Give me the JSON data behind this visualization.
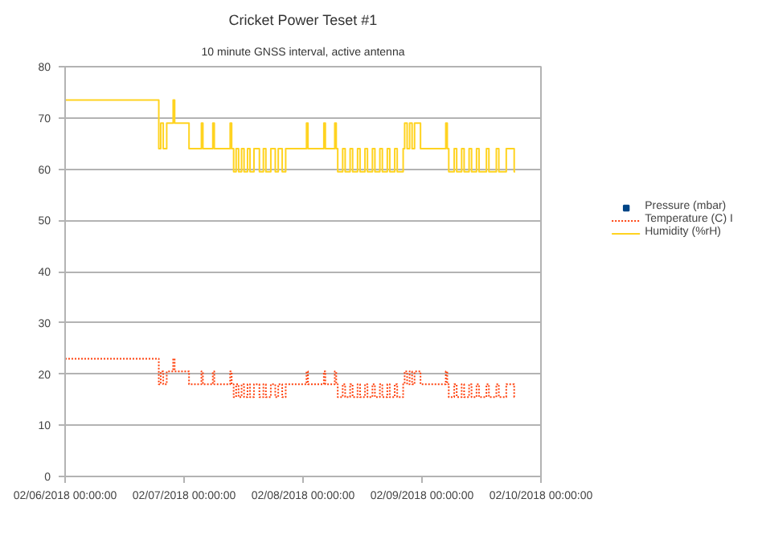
{
  "chart_data": {
    "type": "step",
    "title": "Cricket Power Teset #1",
    "subtitle": "10 minute GNSS interval, active antenna",
    "x": [
      "2018-02-06T00:00",
      "2018-02-06T18:54",
      "2018-02-06T19:18",
      "2018-02-06T19:48",
      "2018-02-06T20:30",
      "2018-02-06T21:48",
      "2018-02-06T22:06",
      "2018-02-07T01:00",
      "2018-02-07T03:30",
      "2018-02-07T03:48",
      "2018-02-07T05:48",
      "2018-02-07T06:06",
      "2018-02-07T09:18",
      "2018-02-07T09:36",
      "2018-02-07T10:00",
      "2018-02-07T10:30",
      "2018-02-07T11:00",
      "2018-02-07T11:36",
      "2018-02-07T12:06",
      "2018-02-07T12:48",
      "2018-02-07T13:18",
      "2018-02-07T14:06",
      "2018-02-07T15:12",
      "2018-02-07T16:00",
      "2018-02-07T16:30",
      "2018-02-07T17:30",
      "2018-02-07T18:24",
      "2018-02-07T19:00",
      "2018-02-07T19:48",
      "2018-02-07T20:30",
      "2018-02-08T00:42",
      "2018-02-08T01:00",
      "2018-02-08T04:12",
      "2018-02-08T04:30",
      "2018-02-08T06:24",
      "2018-02-08T06:42",
      "2018-02-08T07:00",
      "2018-02-08T08:00",
      "2018-02-08T08:30",
      "2018-02-08T09:30",
      "2018-02-08T10:00",
      "2018-02-08T11:00",
      "2018-02-08T11:30",
      "2018-02-08T12:30",
      "2018-02-08T13:00",
      "2018-02-08T14:00",
      "2018-02-08T14:30",
      "2018-02-08T15:30",
      "2018-02-08T16:00",
      "2018-02-08T17:00",
      "2018-02-08T17:30",
      "2018-02-08T18:30",
      "2018-02-08T19:00",
      "2018-02-08T20:12",
      "2018-02-08T20:30",
      "2018-02-08T21:00",
      "2018-02-08T21:30",
      "2018-02-08T22:00",
      "2018-02-08T22:30",
      "2018-02-08T23:42",
      "2018-02-09T04:48",
      "2018-02-09T05:06",
      "2018-02-09T05:24",
      "2018-02-09T06:30",
      "2018-02-09T07:00",
      "2018-02-09T08:00",
      "2018-02-09T08:30",
      "2018-02-09T09:30",
      "2018-02-09T10:00",
      "2018-02-09T11:00",
      "2018-02-09T11:30",
      "2018-02-09T13:00",
      "2018-02-09T13:30",
      "2018-02-09T15:00",
      "2018-02-09T15:30",
      "2018-02-09T17:00",
      "2018-02-09T18:36",
      "2018-02-09T18:48"
    ],
    "series": [
      {
        "name": "Pressure (mbar)",
        "type": "scatter",
        "marker": "square",
        "color": "#004586",
        "values": [
          null,
          null,
          null,
          null,
          null,
          null,
          null,
          null,
          null,
          null,
          null,
          null,
          null,
          null,
          null,
          null,
          null,
          null,
          null,
          null,
          null,
          null,
          null,
          null,
          null,
          null,
          null,
          null,
          null,
          null,
          null,
          null,
          null,
          null,
          null,
          null,
          null,
          null,
          null,
          null,
          null,
          null,
          null,
          null,
          null,
          null,
          null,
          null,
          null,
          null,
          null,
          null,
          null,
          null,
          null,
          null,
          null,
          null,
          null,
          null,
          null,
          null,
          null,
          null,
          null,
          null,
          null,
          null,
          null,
          null,
          null,
          null,
          null,
          null,
          null,
          null,
          null,
          null
        ]
      },
      {
        "name": "Temperature (C) I",
        "color": "#ff420e",
        "line_style": "dotted",
        "values": [
          23,
          18,
          20.5,
          18,
          20.5,
          23,
          20.5,
          18,
          20.5,
          18,
          20.5,
          18,
          20.5,
          18,
          15.5,
          18,
          15.5,
          18,
          15.5,
          18,
          15.5,
          18,
          15.5,
          18,
          15.5,
          18,
          15.5,
          18,
          15.5,
          18,
          20.5,
          18,
          20.5,
          18,
          20.5,
          18,
          15.5,
          18,
          15.5,
          18,
          15.5,
          18,
          15.5,
          18,
          15.5,
          18,
          15.5,
          18,
          15.5,
          18,
          15.5,
          18,
          15.5,
          18,
          20.5,
          18,
          20.5,
          18,
          20.5,
          18,
          20.5,
          18,
          15.5,
          18,
          15.5,
          18,
          15.5,
          18,
          15.5,
          18,
          15.5,
          18,
          15.5,
          18,
          15.5,
          18,
          15.5,
          15.5
        ]
      },
      {
        "name": "Humidity (%rH)",
        "color": "#ffd320",
        "line_style": "solid",
        "values": [
          73.5,
          64,
          69,
          64,
          69,
          73.5,
          69,
          64,
          69,
          64,
          69,
          64,
          69,
          64,
          59.5,
          64,
          59.5,
          64,
          59.5,
          64,
          59.5,
          64,
          59.5,
          64,
          59.5,
          64,
          59.5,
          64,
          59.5,
          64,
          69,
          64,
          69,
          64,
          69,
          64,
          59.5,
          64,
          59.5,
          64,
          59.5,
          64,
          59.5,
          64,
          59.5,
          64,
          59.5,
          64,
          59.5,
          64,
          59.5,
          64,
          59.5,
          64,
          69,
          64,
          69,
          64,
          69,
          64,
          69,
          64,
          59.5,
          64,
          59.5,
          64,
          59.5,
          64,
          59.5,
          64,
          59.5,
          64,
          59.5,
          64,
          59.5,
          64,
          59.5,
          59.5
        ]
      }
    ],
    "ylim": [
      0,
      80
    ],
    "yticks": [
      0,
      10,
      20,
      30,
      40,
      50,
      60,
      70,
      80
    ],
    "xlim": [
      "2018-02-06T00:00",
      "2018-02-10T00:00"
    ],
    "xticks": [
      {
        "value": "2018-02-06T00:00",
        "label": "02/06/2018 00:00:00"
      },
      {
        "value": "2018-02-07T00:00",
        "label": "02/07/2018 00:00:00"
      },
      {
        "value": "2018-02-08T00:00",
        "label": "02/08/2018 00:00:00"
      },
      {
        "value": "2018-02-09T00:00",
        "label": "02/09/2018 00:00:00"
      },
      {
        "value": "2018-02-10T00:00",
        "label": "02/10/2018 00:00:00"
      }
    ],
    "grid": "y",
    "legend": "right"
  }
}
